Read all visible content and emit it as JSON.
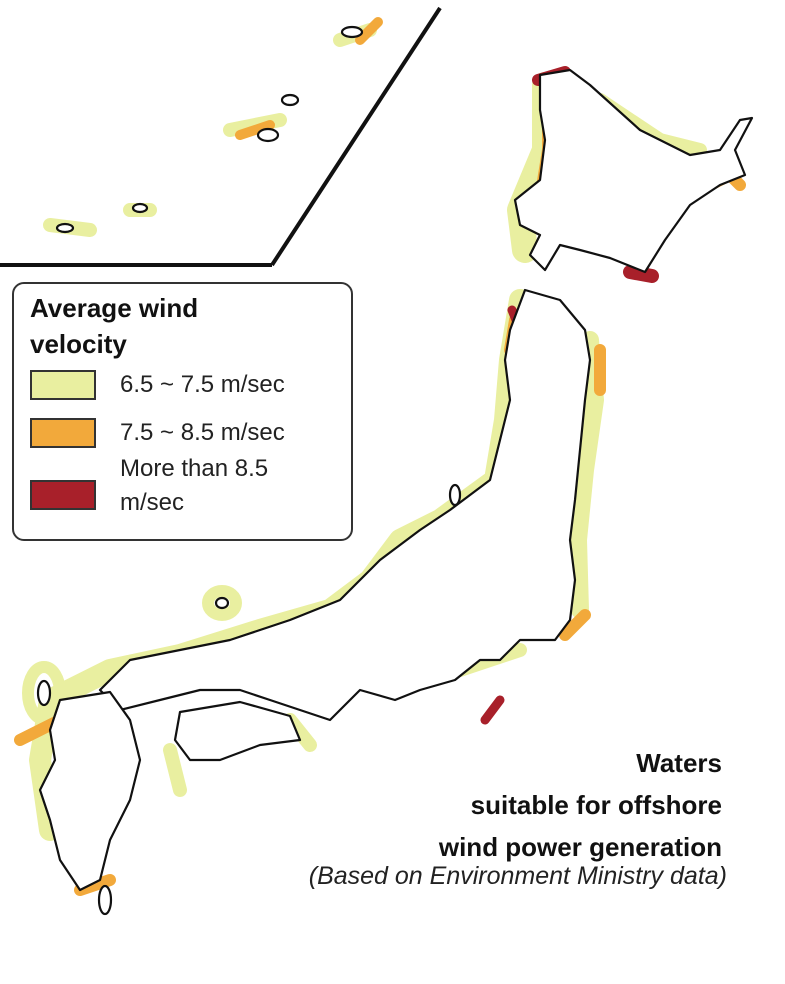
{
  "legend": {
    "title": "Average wind velocity",
    "items": [
      {
        "label": "6.5 ~ 7.5 m/sec",
        "color": "#e9efa0"
      },
      {
        "label": "7.5 ~ 8.5 m/sec",
        "color": "#f2a93b"
      },
      {
        "label": "More than 8.5 m/sec",
        "color": "#a8202a"
      }
    ]
  },
  "caption": {
    "lines": [
      "Waters",
      "suitable for offshore",
      "wind power generation"
    ],
    "note": "(Based on Environment Ministry data)"
  }
}
